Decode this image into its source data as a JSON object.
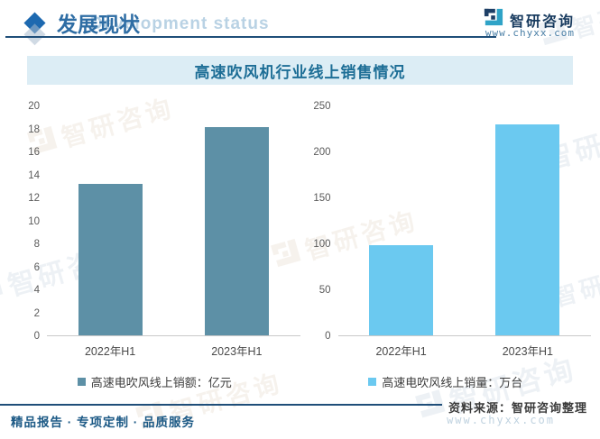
{
  "header": {
    "title": "发展现状",
    "subtitle_en": "Development status",
    "logo_text": "智研咨询",
    "logo_url": "www.chyxx.com"
  },
  "chart_title": "高速吹风机行业线上销售情况",
  "chart_data": [
    {
      "type": "bar",
      "categories": [
        "2022年H1",
        "2023年H1"
      ],
      "values": [
        13.2,
        18.2
      ],
      "legend": "高速电吹风线上销额：亿元",
      "ylim": [
        0,
        20
      ],
      "ytick_step": 2,
      "bar_color": "#5d90a6"
    },
    {
      "type": "bar",
      "categories": [
        "2022年H1",
        "2023年H1"
      ],
      "values": [
        98,
        230
      ],
      "legend": "高速电吹风线上销量：万台",
      "ylim": [
        0,
        250
      ],
      "ytick_step": 50,
      "bar_color": "#6bc9f0"
    }
  ],
  "watermark": {
    "text": "智研咨询"
  },
  "footer": {
    "left": "精品报告 · 专项定制 · 品质服务",
    "source": "资料来源：智研咨询整理",
    "url_watermark": "www.chyxx.com"
  },
  "colors": {
    "accent_blue": "#2e6da4",
    "title_bar_bg": "#dcedf5",
    "title_text": "#1d6e96",
    "rule": "#1f4e79",
    "bar_left": "#5d90a6",
    "bar_right": "#6bc9f0"
  }
}
